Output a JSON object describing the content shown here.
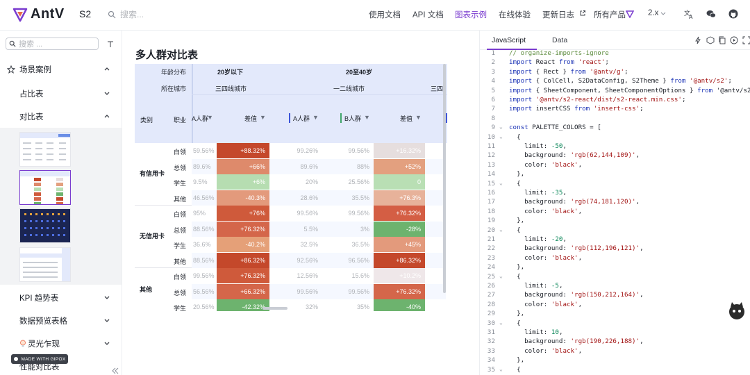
{
  "header": {
    "brand": "AntV",
    "product": "S2",
    "search_placeholder": "搜索...",
    "nav": [
      "使用文档",
      "API 文档",
      "图表示例",
      "在线体验",
      "更新日志",
      "所有产品",
      "2.x"
    ],
    "active_nav": "图表示例"
  },
  "sidebar": {
    "search_placeholder": "搜索 ...",
    "items": [
      {
        "label": "场景案例",
        "icon": "star-icon"
      },
      {
        "label": "占比表"
      },
      {
        "label": "对比表"
      },
      {
        "label": "KPI 趋势表"
      },
      {
        "label": "数据预览表格"
      },
      {
        "label": "灵光乍现",
        "icon": "bulb-icon"
      },
      {
        "label": "性能对比表"
      }
    ],
    "madewith": "MADE WITH GIPOX"
  },
  "main": {
    "title": "多人群对比表",
    "table": {
      "col_hdr_labels": {
        "age": "年龄分布",
        "city": "所在城市",
        "category": "类别",
        "job": "职业"
      },
      "age_groups": [
        "20岁以下",
        "20至40岁"
      ],
      "city_groups": [
        "三四线城市",
        "一二线城市",
        "三四"
      ],
      "measure_headers": [
        "A人群",
        "差值",
        "A人群",
        "B人群",
        "差值"
      ],
      "categories": [
        "有信用卡",
        "无信用卡",
        "其他"
      ],
      "rows": [
        {
          "job": "白领",
          "v": [
            "59.56%",
            "+88.32%",
            "99.26%",
            "99.56%",
            "+16.32%"
          ]
        },
        {
          "job": "总领",
          "v": [
            "89.6%",
            "+66%",
            "89.6%",
            "88%",
            "+52%"
          ]
        },
        {
          "job": "学生",
          "v": [
            "9.5%",
            "+6%",
            "20%",
            "25.56%",
            "0"
          ]
        },
        {
          "job": "其他",
          "v": [
            "46.56%",
            "-40.3%",
            "28.6%",
            "35.5%",
            "+76.3%"
          ]
        },
        {
          "job": "白领",
          "v": [
            "95%",
            "+76%",
            "99.56%",
            "99.56%",
            "+76.32%"
          ]
        },
        {
          "job": "总领",
          "v": [
            "88.56%",
            "+76.32%",
            "5.5%",
            "3%",
            "-28%"
          ]
        },
        {
          "job": "学生",
          "v": [
            "36.6%",
            "-40.2%",
            "32.5%",
            "36.5%",
            "+45%"
          ]
        },
        {
          "job": "其他",
          "v": [
            "88.56%",
            "+86.32%",
            "92.56%",
            "96.56%",
            "+86.32%"
          ]
        },
        {
          "job": "白领",
          "v": [
            "99.56%",
            "+76.32%",
            "12.56%",
            "15.6%",
            "+10.2%"
          ]
        },
        {
          "job": "总领",
          "v": [
            "56.56%",
            "+66.32%",
            "99.56%",
            "99.56%",
            "+76.32%"
          ]
        },
        {
          "job": "学生",
          "v": [
            "20.56%",
            "-42.32%",
            "32%",
            "35%",
            "-40%"
          ]
        }
      ],
      "colors": {
        "diff1": [
          "#c4482b",
          "#de8a6b",
          "#b6ddb1",
          "#e39a7c",
          "#cf5a3b",
          "#d4664a",
          "#e5a078",
          "#c4482b",
          "#cf5a3b",
          "#d4664a",
          "#6db36e"
        ],
        "diff2": [
          "#e6dede",
          "#e3a07f",
          "#b9dfb4",
          "#e7b29a",
          "#d45e44",
          "#6db36e",
          "#e39a7c",
          "#c4482b",
          "#efe7e9",
          "#d4664a",
          "#6db36e"
        ]
      }
    }
  },
  "editor": {
    "tabs": [
      "JavaScript",
      "Data"
    ],
    "lines": [
      {
        "n": "1",
        "t": "// organize-imports-ignore",
        "c": "cmt"
      },
      {
        "n": "2",
        "t": "import React from 'react';"
      },
      {
        "n": "3",
        "t": "import { Rect } from '@antv/g';"
      },
      {
        "n": "4",
        "t": "import { ColCell, S2DataConfig, S2Theme } from '@antv/s2';"
      },
      {
        "n": "5",
        "t": "import { SheetComponent, SheetComponentOptions } from '@antv/s2"
      },
      {
        "n": "6",
        "t": "import '@antv/s2-react/dist/s2-react.min.css';"
      },
      {
        "n": "7",
        "t": "import insertCSS from 'insert-css';"
      },
      {
        "n": "8",
        "t": ""
      },
      {
        "n": "9",
        "t": "const PALETTE_COLORS = [",
        "f": true
      },
      {
        "n": "10",
        "t": "  {",
        "f": true
      },
      {
        "n": "11",
        "t": "    limit: -50,"
      },
      {
        "n": "12",
        "t": "    background: 'rgb(62,144,109)',"
      },
      {
        "n": "13",
        "t": "    color: 'black',"
      },
      {
        "n": "14",
        "t": "  },"
      },
      {
        "n": "15",
        "t": "  {",
        "f": true
      },
      {
        "n": "16",
        "t": "    limit: -35,"
      },
      {
        "n": "17",
        "t": "    background: 'rgb(74,181,120)',"
      },
      {
        "n": "18",
        "t": "    color: 'black',"
      },
      {
        "n": "19",
        "t": "  },"
      },
      {
        "n": "20",
        "t": "  {",
        "f": true
      },
      {
        "n": "21",
        "t": "    limit: -20,"
      },
      {
        "n": "22",
        "t": "    background: 'rgb(112,196,121)',"
      },
      {
        "n": "23",
        "t": "    color: 'black',"
      },
      {
        "n": "24",
        "t": "  },"
      },
      {
        "n": "25",
        "t": "  {",
        "f": true
      },
      {
        "n": "26",
        "t": "    limit: -5,"
      },
      {
        "n": "27",
        "t": "    background: 'rgb(150,212,164)',"
      },
      {
        "n": "28",
        "t": "    color: 'black',"
      },
      {
        "n": "29",
        "t": "  },"
      },
      {
        "n": "30",
        "t": "  {",
        "f": true
      },
      {
        "n": "31",
        "t": "    limit: 10,"
      },
      {
        "n": "32",
        "t": "    background: 'rgb(190,226,188)',"
      },
      {
        "n": "33",
        "t": "    color: 'black',"
      },
      {
        "n": "34",
        "t": "  },"
      },
      {
        "n": "35",
        "t": "  {",
        "f": true
      }
    ]
  }
}
